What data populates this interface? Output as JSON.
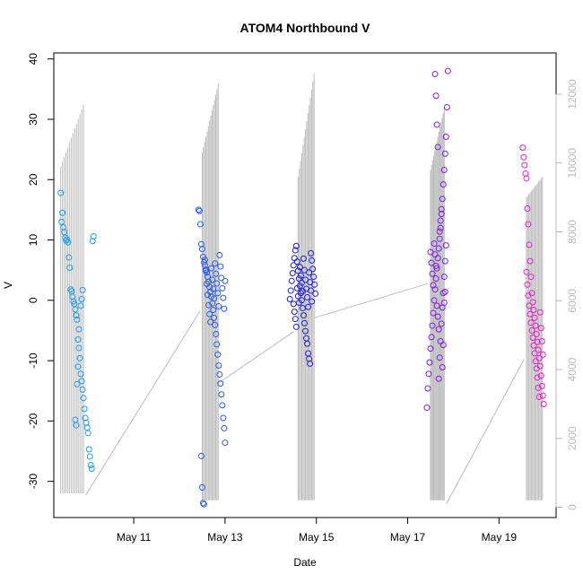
{
  "chart_data": {
    "type": "scatter",
    "title": "ATOM4 Northbound V",
    "xlabel": "Date",
    "ylabel": "V",
    "x_ticks": [
      "May 11",
      "May 13",
      "May 15",
      "May 17",
      "May 19"
    ],
    "x_tick_days": [
      11,
      13,
      15,
      17,
      19
    ],
    "xlim_days": [
      9.25,
      20.25
    ],
    "ylim": [
      -36,
      41
    ],
    "y_ticks": [
      -30,
      -20,
      -10,
      0,
      10,
      20,
      30,
      40
    ],
    "y2_ticks": [
      0,
      2000,
      4000,
      6000,
      8000,
      10000,
      12000
    ],
    "y2lim": [
      -300,
      13200
    ],
    "grid": false,
    "legend": "none",
    "background_series": {
      "color": "#bbbbbb",
      "spikes": [
        {
          "day_start": 9.4,
          "day_end": 9.9,
          "low": 400,
          "high_start": 9900,
          "high_end": 11700
        },
        {
          "day_start": 12.5,
          "day_end": 12.85,
          "low": 200,
          "high_start": 10300,
          "high_end": 12300
        },
        {
          "day_start": 14.6,
          "day_end": 14.95,
          "low": 200,
          "high_start": 9600,
          "high_end": 12600
        },
        {
          "day_start": 17.5,
          "day_end": 17.8,
          "low": 200,
          "high_start": 9800,
          "high_end": 11600
        },
        {
          "day_start": 19.6,
          "day_end": 19.95,
          "low": 200,
          "high_start": 9000,
          "high_end": 9600
        }
      ],
      "connectors": [
        {
          "x0": 9.95,
          "y0": 350,
          "x1": 12.45,
          "y1": 5700
        },
        {
          "x0": 12.85,
          "y0": 3600,
          "x1": 14.5,
          "y1": 5100
        },
        {
          "x0": 14.95,
          "y0": 5500,
          "x1": 17.45,
          "y1": 6500
        },
        {
          "x0": 17.85,
          "y0": 100,
          "x1": 19.55,
          "y1": 4300
        }
      ]
    },
    "series": [
      {
        "color": "#1E9BE8",
        "points": [
          {
            "x": 9.4,
            "y": 17.8
          },
          {
            "x": 9.42,
            "y": 13.0
          },
          {
            "x": 9.44,
            "y": 14.5
          },
          {
            "x": 9.46,
            "y": 12.1
          },
          {
            "x": 9.48,
            "y": 11.3
          },
          {
            "x": 9.5,
            "y": 10.4
          },
          {
            "x": 9.52,
            "y": 9.9
          },
          {
            "x": 9.54,
            "y": 10.1
          },
          {
            "x": 9.56,
            "y": 9.6
          },
          {
            "x": 9.58,
            "y": 7.1
          },
          {
            "x": 9.6,
            "y": 5.4
          },
          {
            "x": 9.62,
            "y": 1.8
          },
          {
            "x": 9.64,
            "y": 1.5
          },
          {
            "x": 9.66,
            "y": 0.6
          },
          {
            "x": 9.68,
            "y": -0.2
          },
          {
            "x": 9.7,
            "y": -0.6
          },
          {
            "x": 9.72,
            "y": -1.5
          },
          {
            "x": 9.74,
            "y": -2.5
          },
          {
            "x": 9.76,
            "y": -3.2
          },
          {
            "x": 9.78,
            "y": -6.5
          },
          {
            "x": 9.8,
            "y": -7.9
          },
          {
            "x": 9.82,
            "y": -9.6
          },
          {
            "x": 9.84,
            "y": -12.2
          },
          {
            "x": 9.86,
            "y": -13.4
          },
          {
            "x": 9.88,
            "y": -14.8
          },
          {
            "x": 9.9,
            "y": -16.2
          },
          {
            "x": 9.92,
            "y": -18.0
          },
          {
            "x": 9.94,
            "y": -19.5
          },
          {
            "x": 9.96,
            "y": -20.3
          },
          {
            "x": 9.98,
            "y": -21.1
          },
          {
            "x": 10.0,
            "y": -22.0
          },
          {
            "x": 10.02,
            "y": -24.7
          },
          {
            "x": 10.04,
            "y": -25.9
          },
          {
            "x": 10.06,
            "y": -27.3
          },
          {
            "x": 10.08,
            "y": -27.9
          },
          {
            "x": 10.1,
            "y": 9.8
          },
          {
            "x": 10.12,
            "y": 10.6
          },
          {
            "x": 9.72,
            "y": -19.8
          },
          {
            "x": 9.74,
            "y": -20.7
          },
          {
            "x": 9.76,
            "y": -13.9
          },
          {
            "x": 9.78,
            "y": -11.0
          },
          {
            "x": 9.8,
            "y": -4.8
          },
          {
            "x": 9.84,
            "y": -0.9
          },
          {
            "x": 9.86,
            "y": 0.2
          },
          {
            "x": 9.88,
            "y": 1.7
          }
        ]
      },
      {
        "color": "#2A5BE8",
        "points": [
          {
            "x": 12.42,
            "y": 15.0
          },
          {
            "x": 12.44,
            "y": 14.8
          },
          {
            "x": 12.46,
            "y": 12.6
          },
          {
            "x": 12.48,
            "y": 9.3
          },
          {
            "x": 12.5,
            "y": 8.5
          },
          {
            "x": 12.52,
            "y": 7.2
          },
          {
            "x": 12.54,
            "y": 6.3
          },
          {
            "x": 12.56,
            "y": 5.8
          },
          {
            "x": 12.58,
            "y": 5.1
          },
          {
            "x": 12.6,
            "y": 4.6
          },
          {
            "x": 12.62,
            "y": 3.9
          },
          {
            "x": 12.64,
            "y": 3.1
          },
          {
            "x": 12.66,
            "y": 2.2
          },
          {
            "x": 12.68,
            "y": 1.4
          },
          {
            "x": 12.7,
            "y": 0.6
          },
          {
            "x": 12.72,
            "y": -0.5
          },
          {
            "x": 12.74,
            "y": -1.6
          },
          {
            "x": 12.76,
            "y": -2.9
          },
          {
            "x": 12.78,
            "y": -4.1
          },
          {
            "x": 12.8,
            "y": -5.6
          },
          {
            "x": 12.82,
            "y": -7.3
          },
          {
            "x": 12.84,
            "y": -9.0
          },
          {
            "x": 12.86,
            "y": -10.8
          },
          {
            "x": 12.88,
            "y": -12.3
          },
          {
            "x": 12.9,
            "y": -13.8
          },
          {
            "x": 12.92,
            "y": -15.6
          },
          {
            "x": 12.94,
            "y": -17.4
          },
          {
            "x": 12.96,
            "y": -19.5
          },
          {
            "x": 12.98,
            "y": -21.2
          },
          {
            "x": 13.0,
            "y": -23.6
          },
          {
            "x": 12.48,
            "y": -25.8
          },
          {
            "x": 12.5,
            "y": -31.0
          },
          {
            "x": 12.52,
            "y": -33.6
          },
          {
            "x": 12.54,
            "y": -33.8
          },
          {
            "x": 12.56,
            "y": 6.7
          },
          {
            "x": 12.58,
            "y": 4.9
          },
          {
            "x": 12.6,
            "y": 2.7
          },
          {
            "x": 12.62,
            "y": 0.9
          },
          {
            "x": 12.64,
            "y": -0.8
          },
          {
            "x": 12.66,
            "y": -2.3
          },
          {
            "x": 12.68,
            "y": -3.6
          },
          {
            "x": 12.7,
            "y": 5.3
          },
          {
            "x": 12.72,
            "y": 3.4
          },
          {
            "x": 12.74,
            "y": 1.9
          },
          {
            "x": 12.76,
            "y": 0.3
          },
          {
            "x": 12.78,
            "y": 6.1
          },
          {
            "x": 12.8,
            "y": 4.4
          },
          {
            "x": 12.82,
            "y": 2.8
          },
          {
            "x": 12.84,
            "y": 1.2
          },
          {
            "x": 12.86,
            "y": -1.0
          },
          {
            "x": 12.88,
            "y": 7.5
          },
          {
            "x": 12.9,
            "y": 5.6
          },
          {
            "x": 12.92,
            "y": 3.7
          },
          {
            "x": 12.94,
            "y": 2.0
          },
          {
            "x": 12.96,
            "y": 0.4
          },
          {
            "x": 12.98,
            "y": -1.4
          },
          {
            "x": 13.0,
            "y": 3.2
          }
        ]
      },
      {
        "color": "#1F1FD6",
        "points": [
          {
            "x": 14.42,
            "y": 0.2
          },
          {
            "x": 14.44,
            "y": 1.6
          },
          {
            "x": 14.46,
            "y": 3.2
          },
          {
            "x": 14.48,
            "y": 4.5
          },
          {
            "x": 14.5,
            "y": 5.8
          },
          {
            "x": 14.52,
            "y": 7.0
          },
          {
            "x": 14.54,
            "y": 8.3
          },
          {
            "x": 14.56,
            "y": 9.0
          },
          {
            "x": 14.58,
            "y": 6.4
          },
          {
            "x": 14.6,
            "y": 4.9
          },
          {
            "x": 14.62,
            "y": 3.6
          },
          {
            "x": 14.64,
            "y": 2.4
          },
          {
            "x": 14.66,
            "y": 1.2
          },
          {
            "x": 14.68,
            "y": 0.0
          },
          {
            "x": 14.7,
            "y": -1.3
          },
          {
            "x": 14.72,
            "y": -2.5
          },
          {
            "x": 14.74,
            "y": -3.8
          },
          {
            "x": 14.76,
            "y": -5.1
          },
          {
            "x": 14.78,
            "y": -6.3
          },
          {
            "x": 14.8,
            "y": -7.2
          },
          {
            "x": 14.82,
            "y": -8.8
          },
          {
            "x": 14.84,
            "y": -9.7
          },
          {
            "x": 14.86,
            "y": -10.5
          },
          {
            "x": 14.88,
            "y": 7.8
          },
          {
            "x": 14.9,
            "y": 6.6
          },
          {
            "x": 14.92,
            "y": 5.2
          },
          {
            "x": 14.94,
            "y": 3.9
          },
          {
            "x": 14.96,
            "y": 2.6
          },
          {
            "x": 14.98,
            "y": 1.1
          },
          {
            "x": 14.5,
            "y": -0.6
          },
          {
            "x": 14.52,
            "y": -1.9
          },
          {
            "x": 14.54,
            "y": -3.1
          },
          {
            "x": 14.56,
            "y": -4.4
          },
          {
            "x": 14.58,
            "y": 2.0
          },
          {
            "x": 14.6,
            "y": 0.7
          },
          {
            "x": 14.62,
            "y": -0.4
          },
          {
            "x": 14.64,
            "y": 5.5
          },
          {
            "x": 14.66,
            "y": 4.1
          },
          {
            "x": 14.68,
            "y": 2.9
          },
          {
            "x": 14.7,
            "y": 1.5
          },
          {
            "x": 14.72,
            "y": 6.9
          },
          {
            "x": 14.74,
            "y": 5.0
          },
          {
            "x": 14.76,
            "y": 3.4
          },
          {
            "x": 14.78,
            "y": 1.9
          },
          {
            "x": 14.8,
            "y": 0.5
          },
          {
            "x": 14.82,
            "y": -1.1
          },
          {
            "x": 14.84,
            "y": 4.6
          },
          {
            "x": 14.86,
            "y": 3.0
          },
          {
            "x": 14.88,
            "y": 1.6
          },
          {
            "x": 14.9,
            "y": -0.2
          }
        ]
      },
      {
        "color": "#7A1FE8",
        "points": [
          {
            "x": 17.42,
            "y": -17.8
          },
          {
            "x": 17.44,
            "y": -14.6
          },
          {
            "x": 17.46,
            "y": -12.2
          },
          {
            "x": 17.48,
            "y": -10.3
          },
          {
            "x": 17.5,
            "y": -8.0
          },
          {
            "x": 17.52,
            "y": -6.1
          },
          {
            "x": 17.54,
            "y": -4.2
          },
          {
            "x": 17.56,
            "y": -2.1
          },
          {
            "x": 17.58,
            "y": 0.0
          },
          {
            "x": 17.6,
            "y": 1.8
          },
          {
            "x": 17.62,
            "y": 3.6
          },
          {
            "x": 17.64,
            "y": 5.3
          },
          {
            "x": 17.66,
            "y": 7.0
          },
          {
            "x": 17.68,
            "y": 8.6
          },
          {
            "x": 17.7,
            "y": 10.2
          },
          {
            "x": 17.72,
            "y": 12.0
          },
          {
            "x": 17.74,
            "y": 14.3
          },
          {
            "x": 17.76,
            "y": 16.8
          },
          {
            "x": 17.78,
            "y": 19.2
          },
          {
            "x": 17.8,
            "y": 21.6
          },
          {
            "x": 17.82,
            "y": 24.3
          },
          {
            "x": 17.84,
            "y": 27.1
          },
          {
            "x": 17.86,
            "y": 32.0
          },
          {
            "x": 17.88,
            "y": 38.0
          },
          {
            "x": 17.6,
            "y": 37.5
          },
          {
            "x": 17.62,
            "y": 33.9
          },
          {
            "x": 17.64,
            "y": 29.1
          },
          {
            "x": 17.66,
            "y": 25.4
          },
          {
            "x": 17.68,
            "y": -13.0
          },
          {
            "x": 17.7,
            "y": -9.5
          },
          {
            "x": 17.72,
            "y": -6.8
          },
          {
            "x": 17.74,
            "y": -3.9
          },
          {
            "x": 17.76,
            "y": -1.2
          },
          {
            "x": 17.78,
            "y": 1.2
          },
          {
            "x": 17.8,
            "y": 3.9
          },
          {
            "x": 17.82,
            "y": 6.5
          },
          {
            "x": 17.84,
            "y": 9.1
          },
          {
            "x": 17.5,
            "y": 8.0
          },
          {
            "x": 17.52,
            "y": 6.2
          },
          {
            "x": 17.54,
            "y": 4.4
          },
          {
            "x": 17.56,
            "y": 2.5
          },
          {
            "x": 17.58,
            "y": 9.4
          },
          {
            "x": 17.6,
            "y": 7.6
          },
          {
            "x": 17.62,
            "y": 5.7
          },
          {
            "x": 17.64,
            "y": -0.9
          },
          {
            "x": 17.66,
            "y": -2.7
          },
          {
            "x": 17.68,
            "y": -4.8
          },
          {
            "x": 17.7,
            "y": 11.4
          },
          {
            "x": 17.72,
            "y": 13.2
          },
          {
            "x": 17.74,
            "y": 15.1
          },
          {
            "x": 17.76,
            "y": -11.1
          },
          {
            "x": 17.78,
            "y": -7.4
          },
          {
            "x": 17.8,
            "y": -0.4
          },
          {
            "x": 17.82,
            "y": 1.4
          }
        ]
      },
      {
        "color": "#E81FC9",
        "points": [
          {
            "x": 19.52,
            "y": 25.3
          },
          {
            "x": 19.54,
            "y": 23.7
          },
          {
            "x": 19.56,
            "y": 22.4
          },
          {
            "x": 19.58,
            "y": 21.0
          },
          {
            "x": 19.6,
            "y": 20.2
          },
          {
            "x": 19.62,
            "y": 15.2
          },
          {
            "x": 19.64,
            "y": 12.6
          },
          {
            "x": 19.66,
            "y": 9.2
          },
          {
            "x": 19.68,
            "y": 6.5
          },
          {
            "x": 19.7,
            "y": 3.9
          },
          {
            "x": 19.72,
            "y": 1.2
          },
          {
            "x": 19.74,
            "y": -0.3
          },
          {
            "x": 19.76,
            "y": -1.6
          },
          {
            "x": 19.78,
            "y": -2.9
          },
          {
            "x": 19.8,
            "y": -4.2
          },
          {
            "x": 19.82,
            "y": -5.6
          },
          {
            "x": 19.84,
            "y": -6.9
          },
          {
            "x": 19.86,
            "y": -8.2
          },
          {
            "x": 19.88,
            "y": -9.6
          },
          {
            "x": 19.9,
            "y": -10.9
          },
          {
            "x": 19.92,
            "y": -12.5
          },
          {
            "x": 19.94,
            "y": -14.2
          },
          {
            "x": 19.96,
            "y": -15.8
          },
          {
            "x": 19.98,
            "y": -17.2
          },
          {
            "x": 19.6,
            "y": 4.7
          },
          {
            "x": 19.62,
            "y": 2.6
          },
          {
            "x": 19.64,
            "y": 0.8
          },
          {
            "x": 19.66,
            "y": -0.9
          },
          {
            "x": 19.68,
            "y": -2.3
          },
          {
            "x": 19.7,
            "y": -3.7
          },
          {
            "x": 19.72,
            "y": -5.0
          },
          {
            "x": 19.74,
            "y": -6.2
          },
          {
            "x": 19.76,
            "y": -7.5
          },
          {
            "x": 19.78,
            "y": -8.8
          },
          {
            "x": 19.8,
            "y": -10.1
          },
          {
            "x": 19.82,
            "y": -11.3
          },
          {
            "x": 19.84,
            "y": -12.8
          },
          {
            "x": 19.86,
            "y": -14.5
          },
          {
            "x": 19.88,
            "y": -16.0
          },
          {
            "x": 19.9,
            "y": -2.0
          },
          {
            "x": 19.92,
            "y": -4.6
          },
          {
            "x": 19.94,
            "y": -6.8
          },
          {
            "x": 19.96,
            "y": -9.0
          }
        ]
      }
    ]
  }
}
